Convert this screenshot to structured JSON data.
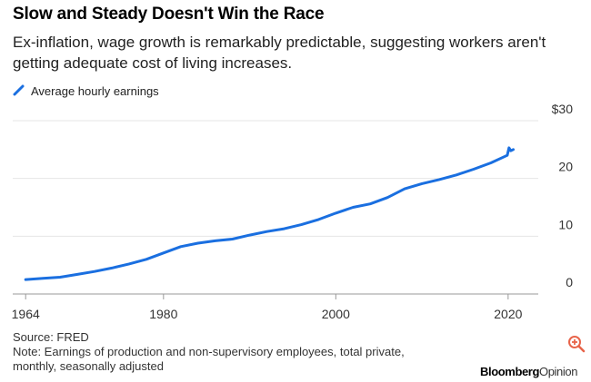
{
  "title": "Slow and Steady Doesn't Win the Race",
  "subtitle": "Ex-inflation, wage growth is remarkably predictable, suggesting workers aren't getting adequate cost of living increases.",
  "legend_label": "Average hourly earnings",
  "source": "Source: FRED",
  "note": "Note: Earnings of production and non-supervisory employees, total private, monthly, seasonally adjusted",
  "brand_main": "Bloomberg",
  "brand_sub": "Opinion",
  "colors": {
    "line": "#1a6fe0",
    "grid": "#e6e6e6",
    "axis": "#999999"
  },
  "icons": {
    "legend": "line-swatch-icon",
    "zoom": "zoom-in-icon"
  },
  "chart_data": {
    "type": "line",
    "title": "Slow and Steady Doesn't Win the Race",
    "xlabel": "",
    "ylabel": "",
    "xlim": [
      1962.5,
      2023.5
    ],
    "ylim": [
      0,
      30
    ],
    "x_ticks": [
      1964,
      1980,
      2000,
      2020
    ],
    "x_tick_labels": [
      "1964",
      "1980",
      "2000",
      "2020"
    ],
    "y_ticks": [
      0,
      10,
      20,
      30
    ],
    "y_tick_labels": [
      "0",
      "10",
      "20",
      "$30"
    ],
    "legend_position": "top-left",
    "series": [
      {
        "name": "Average hourly earnings",
        "x": [
          1964,
          1966,
          1968,
          1970,
          1972,
          1974,
          1976,
          1978,
          1980,
          1982,
          1984,
          1986,
          1988,
          1990,
          1992,
          1994,
          1996,
          1998,
          2000,
          2002,
          2004,
          2006,
          2008,
          2010,
          2012,
          2014,
          2016,
          2018,
          2019.9,
          2020.1,
          2020.3,
          2020.6
        ],
        "values": [
          2.5,
          2.7,
          2.9,
          3.4,
          3.9,
          4.5,
          5.2,
          6.0,
          7.1,
          8.2,
          8.8,
          9.2,
          9.5,
          10.2,
          10.8,
          11.3,
          12.0,
          12.9,
          14.0,
          15.0,
          15.6,
          16.7,
          18.2,
          19.1,
          19.8,
          20.6,
          21.6,
          22.7,
          24.0,
          25.3,
          24.8,
          25.0
        ]
      }
    ]
  }
}
